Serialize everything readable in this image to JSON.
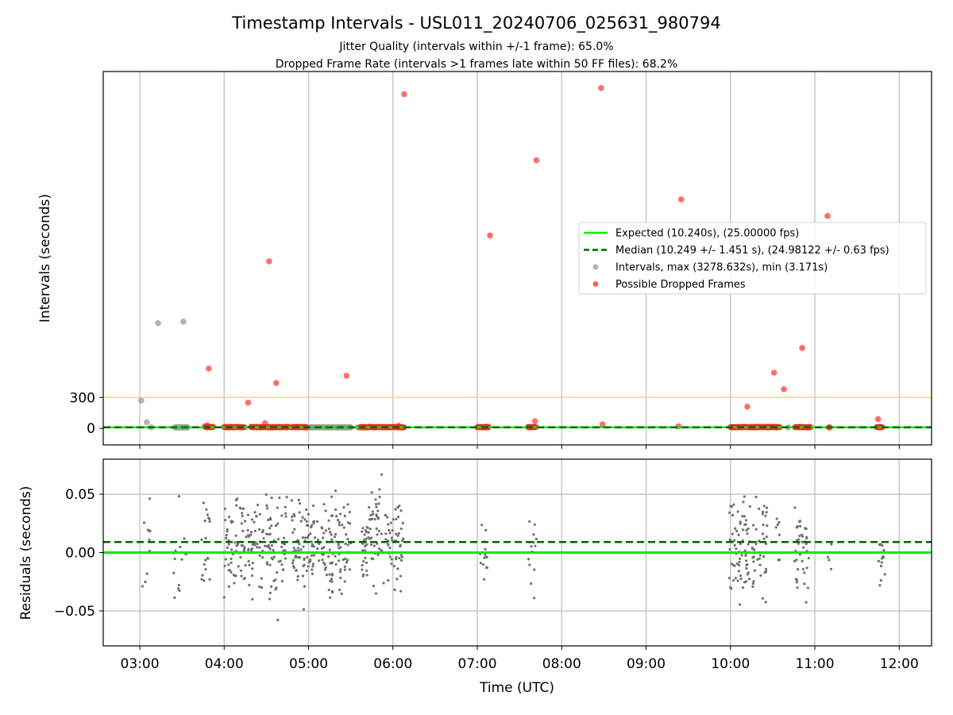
{
  "title": "Timestamp Intervals - USL011_20240706_025631_980794",
  "subtitle_1": "Jitter Quality (intervals within +/-1 frame): 65.0%",
  "subtitle_2": "Dropped Frame Rate (intervals >1 frames late within 50 FF files): 68.2%",
  "colors": {
    "expected": "#00ee00",
    "median": "#006400",
    "intervals": "#999999",
    "dropped": "#ff2020",
    "threshold": "#f7d57a",
    "grid": "#c8c8c8",
    "residual_points": "#707070"
  },
  "chart_data": [
    {
      "type": "scatter",
      "name": "intervals",
      "ylabel": "Intervals (seconds)",
      "xlabel": "",
      "x_ticks": [
        "03:00",
        "04:00",
        "05:00",
        "06:00",
        "07:00",
        "08:00",
        "09:00",
        "10:00",
        "11:00",
        "12:00"
      ],
      "y_ticks": [
        0,
        300
      ],
      "xlim": [
        "02:34",
        "12:23"
      ],
      "ylim": [
        -160,
        3460
      ],
      "grid": "vertical",
      "threshold_y": 300,
      "expected_y": 10.24,
      "median_y": 10.249,
      "legend_position": "center-right",
      "legend": [
        {
          "kind": "line-solid",
          "label": "Expected (10.240s), (25.00000 fps)"
        },
        {
          "kind": "line-dashed",
          "label": "Median (10.249 +/- 1.451 s), (24.98122 +/- 0.63 fps)"
        },
        {
          "kind": "point-gray",
          "label": "Intervals, max (3278.632s), min (3.171s)"
        },
        {
          "kind": "point-red",
          "label": "Possible Dropped Frames"
        }
      ],
      "normal_points": [
        [
          "03:01",
          270
        ],
        [
          "03:05",
          60
        ],
        [
          "03:08",
          10
        ],
        [
          "03:13",
          1020
        ],
        [
          "03:28",
          10
        ],
        [
          "03:31",
          1035
        ],
        [
          "03:33",
          10
        ],
        [
          "04:15",
          10
        ],
        [
          "05:03",
          10
        ],
        [
          "05:30",
          10
        ],
        [
          "10:18",
          10
        ],
        [
          "10:41",
          10
        ]
      ],
      "normal_clusters": [
        [
          "03:25",
          "03:34",
          10
        ],
        [
          "04:58",
          "05:30",
          10
        ],
        [
          "05:35",
          "05:43",
          10
        ]
      ],
      "dropped_points": [
        [
          "03:46",
          20
        ],
        [
          "03:48",
          30
        ],
        [
          "03:52",
          15
        ],
        [
          "03:49",
          580
        ],
        [
          "04:17",
          250
        ],
        [
          "04:29",
          50
        ],
        [
          "04:32",
          1620
        ],
        [
          "04:37",
          440
        ],
        [
          "05:27",
          510
        ],
        [
          "06:08",
          3240
        ],
        [
          "07:08",
          15
        ],
        [
          "07:09",
          1870
        ],
        [
          "07:41",
          70
        ],
        [
          "07:42",
          2600
        ],
        [
          "08:29",
          40
        ],
        [
          "08:28",
          3300
        ],
        [
          "09:23",
          20
        ],
        [
          "09:25",
          2220
        ],
        [
          "10:12",
          210
        ],
        [
          "10:31",
          540
        ],
        [
          "10:38",
          380
        ],
        [
          "10:51",
          780
        ],
        [
          "11:09",
          2060
        ],
        [
          "11:45",
          90
        ],
        [
          "06:04",
          25
        ]
      ],
      "dropped_clusters": [
        [
          "03:47",
          "03:52",
          12
        ],
        [
          "04:00",
          "04:14",
          12
        ],
        [
          "04:19",
          "04:46",
          12
        ],
        [
          "04:48",
          "04:59",
          12
        ],
        [
          "05:37",
          "06:08",
          12
        ],
        [
          "07:00",
          "07:08",
          12
        ],
        [
          "07:36",
          "07:42",
          12
        ],
        [
          "10:00",
          "10:12",
          12
        ],
        [
          "10:13",
          "10:35",
          12
        ],
        [
          "10:46",
          "10:57",
          12
        ],
        [
          "11:10",
          "11:11",
          12
        ],
        [
          "11:44",
          "11:48",
          12
        ]
      ]
    },
    {
      "type": "scatter",
      "name": "residuals",
      "ylabel": "Residuals (seconds)",
      "xlabel": "Time (UTC)",
      "x_ticks": [
        "03:00",
        "04:00",
        "05:00",
        "06:00",
        "07:00",
        "08:00",
        "09:00",
        "10:00",
        "11:00",
        "12:00"
      ],
      "y_ticks": [
        "0.05",
        "0.00",
        "−0.05"
      ],
      "y_tick_values": [
        0.05,
        0.0,
        -0.05
      ],
      "ylim": [
        -0.08,
        0.08
      ],
      "grid": "both",
      "expected_y": 0.0,
      "median_y": 0.009,
      "residual_groups": [
        [
          "02:59",
          "03:09",
          10,
          0.0,
          0.035
        ],
        [
          "03:24",
          "03:33",
          14,
          0.005,
          0.03
        ],
        [
          "03:44",
          "03:50",
          18,
          0.005,
          0.03
        ],
        [
          "04:00",
          "04:30",
          110,
          0.005,
          0.028
        ],
        [
          "04:30",
          "04:45",
          60,
          0.005,
          0.03
        ],
        [
          "04:48",
          "05:00",
          55,
          0.005,
          0.03
        ],
        [
          "05:00",
          "05:30",
          120,
          0.005,
          0.028
        ],
        [
          "05:37",
          "05:50",
          60,
          0.008,
          0.03
        ],
        [
          "05:50",
          "06:08",
          60,
          0.005,
          0.03
        ],
        [
          "07:02",
          "07:09",
          14,
          0.005,
          0.02
        ],
        [
          "07:36",
          "07:42",
          14,
          0.0,
          0.03
        ],
        [
          "09:59",
          "10:14",
          70,
          0.005,
          0.03
        ],
        [
          "10:15",
          "10:26",
          40,
          0.005,
          0.03
        ],
        [
          "10:32",
          "10:36",
          8,
          0.01,
          0.02
        ],
        [
          "10:45",
          "10:56",
          40,
          0.0,
          0.03
        ],
        [
          "11:09",
          "11:12",
          4,
          0.0,
          0.012
        ],
        [
          "11:45",
          "11:50",
          14,
          0.0,
          0.02
        ]
      ]
    }
  ]
}
